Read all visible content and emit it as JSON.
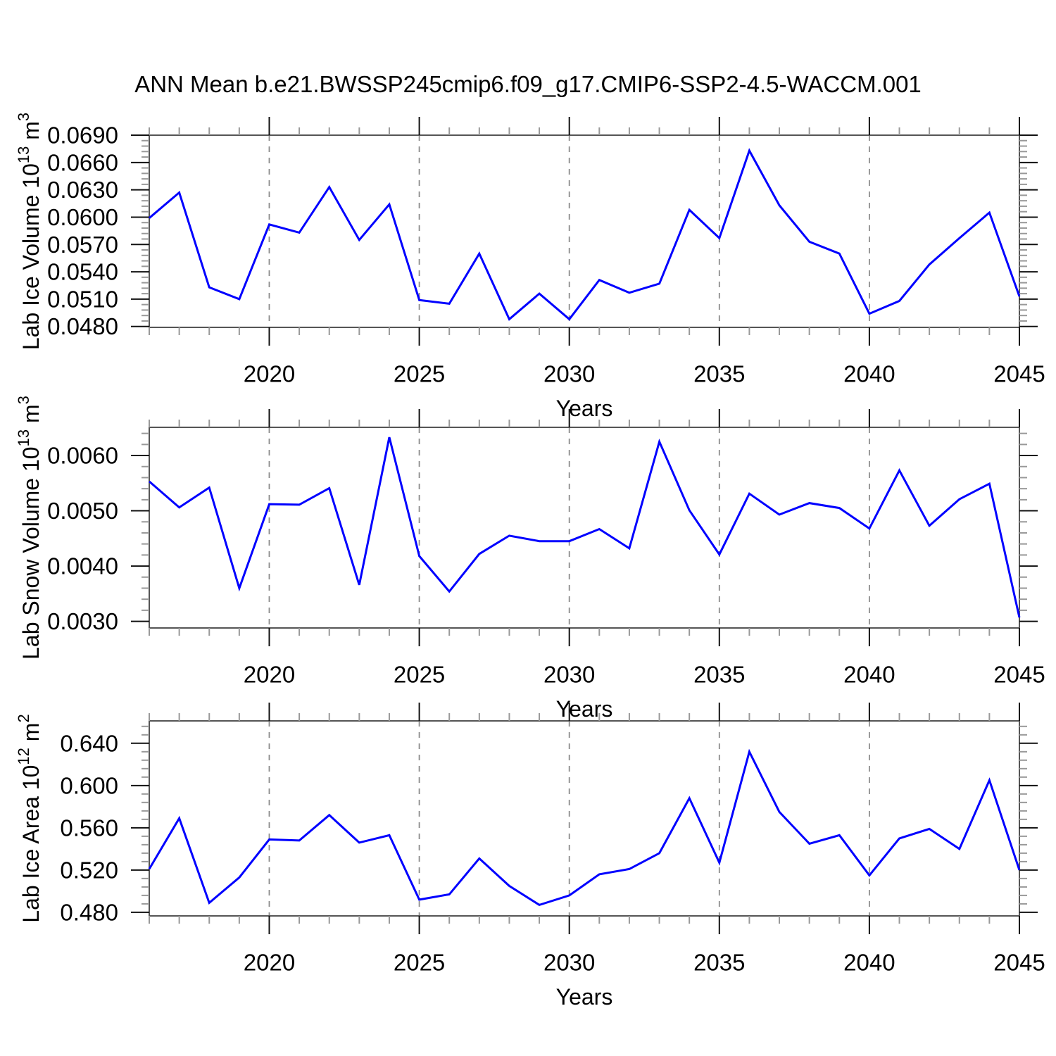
{
  "title": "ANN Mean b.e21.BWSSP245cmip6.f09_g17.CMIP6-SSP2-4.5-WACCM.001",
  "style": {
    "background": "#ffffff",
    "line_color": "#0000ff",
    "frame_color": "#555555",
    "major_tick_color": "#111111",
    "minor_tick_color": "#999999",
    "grid_color": "#8c8c8c",
    "text_color": "#000000"
  },
  "x_axis": {
    "label": "Years",
    "xlim": [
      2016,
      2045
    ],
    "major_ticks": [
      2020,
      2025,
      2030,
      2035,
      2040,
      2045
    ],
    "tick_labels": [
      "2020",
      "2025",
      "2030",
      "2035",
      "2040",
      "2045"
    ],
    "minor_step": 1,
    "gridlines": [
      2020,
      2025,
      2030,
      2035,
      2040
    ]
  },
  "chart_data": [
    {
      "type": "line",
      "name": "lab-ice-volume",
      "ylabel_segments": [
        {
          "t": "Lab Ice Volume 10"
        },
        {
          "t": "13",
          "sup": true
        },
        {
          "t": " m"
        },
        {
          "t": "3",
          "sup": true
        }
      ],
      "ylim": [
        0.0479,
        0.069
      ],
      "major_ticks": [
        0.048,
        0.051,
        0.054,
        0.057,
        0.06,
        0.063,
        0.066,
        0.069
      ],
      "tick_labels": [
        "0.0480",
        "0.0510",
        "0.0540",
        "0.0570",
        "0.0600",
        "0.0630",
        "0.0660",
        "0.0690"
      ],
      "minor_step": 0.0006,
      "x": [
        2016,
        2017,
        2018,
        2019,
        2020,
        2021,
        2022,
        2023,
        2024,
        2025,
        2026,
        2027,
        2028,
        2029,
        2030,
        2031,
        2032,
        2033,
        2034,
        2035,
        2036,
        2037,
        2038,
        2039,
        2040,
        2041,
        2042,
        2043,
        2044,
        2045
      ],
      "values": [
        0.0599,
        0.0627,
        0.0523,
        0.051,
        0.0592,
        0.0583,
        0.0633,
        0.0575,
        0.0614,
        0.0509,
        0.0505,
        0.056,
        0.0488,
        0.0516,
        0.0488,
        0.0531,
        0.0517,
        0.0527,
        0.0608,
        0.0577,
        0.0673,
        0.0613,
        0.0573,
        0.056,
        0.0494,
        0.0508,
        0.0548,
        0.0577,
        0.0605,
        0.0513
      ]
    },
    {
      "type": "line",
      "name": "lab-snow-volume",
      "ylabel_segments": [
        {
          "t": "Lab Snow Volume 10"
        },
        {
          "t": "13",
          "sup": true
        },
        {
          "t": " m"
        },
        {
          "t": "3",
          "sup": true
        }
      ],
      "ylim": [
        0.00288,
        0.00651
      ],
      "major_ticks": [
        0.003,
        0.004,
        0.005,
        0.006
      ],
      "tick_labels": [
        "0.0030",
        "0.0040",
        "0.0050",
        "0.0060"
      ],
      "minor_step": 0.0002,
      "x": [
        2016,
        2017,
        2018,
        2019,
        2020,
        2021,
        2022,
        2023,
        2024,
        2025,
        2026,
        2027,
        2028,
        2029,
        2030,
        2031,
        2032,
        2033,
        2034,
        2035,
        2036,
        2037,
        2038,
        2039,
        2040,
        2041,
        2042,
        2043,
        2044,
        2045
      ],
      "values": [
        0.00553,
        0.00506,
        0.00542,
        0.0036,
        0.00512,
        0.00511,
        0.00541,
        0.00366,
        0.00633,
        0.00418,
        0.00354,
        0.00422,
        0.00455,
        0.00445,
        0.00445,
        0.00467,
        0.00432,
        0.00625,
        0.00501,
        0.00421,
        0.00531,
        0.00493,
        0.00514,
        0.00505,
        0.00468,
        0.00573,
        0.00473,
        0.00521,
        0.00549,
        0.00307
      ]
    },
    {
      "type": "line",
      "name": "lab-ice-area",
      "ylabel_segments": [
        {
          "t": "Lab Ice Area 10"
        },
        {
          "t": "12",
          "sup": true
        },
        {
          "t": " m"
        },
        {
          "t": "2",
          "sup": true
        }
      ],
      "ylim": [
        0.4766,
        0.6612
      ],
      "major_ticks": [
        0.48,
        0.52,
        0.56,
        0.6,
        0.64
      ],
      "tick_labels": [
        "0.480",
        "0.520",
        "0.560",
        "0.600",
        "0.640"
      ],
      "minor_step": 0.008,
      "x": [
        2016,
        2017,
        2018,
        2019,
        2020,
        2021,
        2022,
        2023,
        2024,
        2025,
        2026,
        2027,
        2028,
        2029,
        2030,
        2031,
        2032,
        2033,
        2034,
        2035,
        2036,
        2037,
        2038,
        2039,
        2040,
        2041,
        2042,
        2043,
        2044,
        2045
      ],
      "values": [
        0.521,
        0.569,
        0.489,
        0.513,
        0.549,
        0.548,
        0.572,
        0.546,
        0.553,
        0.492,
        0.497,
        0.531,
        0.505,
        0.487,
        0.496,
        0.516,
        0.521,
        0.536,
        0.588,
        0.527,
        0.632,
        0.575,
        0.545,
        0.553,
        0.515,
        0.55,
        0.559,
        0.54,
        0.605,
        0.52
      ]
    }
  ]
}
